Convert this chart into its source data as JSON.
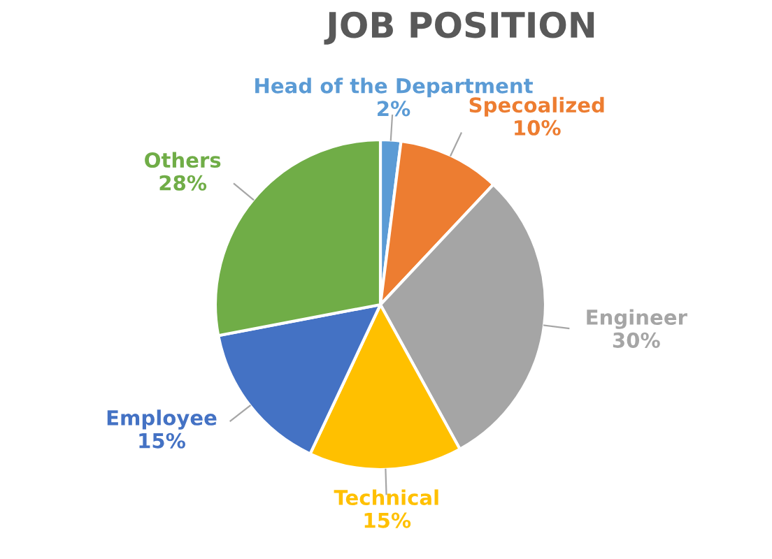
{
  "chart_data": {
    "type": "pie",
    "title": "JOB POSITION",
    "categories": [
      "Head of the Department",
      "Specoalized",
      "Engineer",
      "Technical",
      "Employee",
      "Others"
    ],
    "values": [
      2,
      10,
      30,
      15,
      15,
      28
    ],
    "value_labels": [
      "2%",
      "10%",
      "30%",
      "15%",
      "15%",
      "28%"
    ],
    "colors": [
      "#5b9bd5",
      "#ed7d31",
      "#a5a5a5",
      "#ffc000",
      "#4472c4",
      "#70ad47"
    ]
  }
}
